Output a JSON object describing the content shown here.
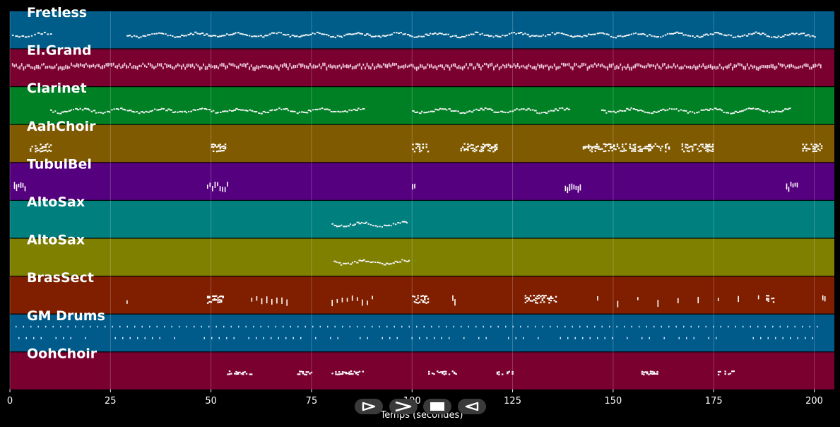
{
  "chart_data": {
    "type": "piano-roll",
    "xlabel": "Temps (secondes)",
    "xlim": [
      0,
      205
    ],
    "xticks": [
      0,
      25,
      50,
      75,
      100,
      125,
      150,
      175,
      200
    ],
    "grid": true,
    "tracks": [
      {
        "name": "Fretless",
        "color": "#005d8a",
        "regions": [
          [
            0.5,
            10.5,
            "scatter"
          ],
          [
            29,
            200,
            "wave"
          ]
        ]
      },
      {
        "name": "El.Grand",
        "color": "#7a0030",
        "regions": [
          [
            0.5,
            201.5,
            "dense"
          ]
        ]
      },
      {
        "name": "Clarinet",
        "color": "#008024",
        "regions": [
          [
            10,
            88,
            "wave"
          ],
          [
            100,
            139,
            "wave"
          ],
          [
            147,
            194,
            "wave"
          ]
        ]
      },
      {
        "name": "AahChoir",
        "color": "#805a00",
        "regions": [
          [
            4.5,
            10,
            "cluster"
          ],
          [
            50,
            53.5,
            "cluster"
          ],
          [
            100,
            104,
            "cluster"
          ],
          [
            112,
            121,
            "clusters"
          ],
          [
            142,
            153,
            "cluster"
          ],
          [
            154,
            164,
            "clusters"
          ],
          [
            167,
            175,
            "clusters"
          ],
          [
            197,
            202,
            "cluster"
          ]
        ]
      },
      {
        "name": "TubulBel",
        "color": "#55007f",
        "regions": [
          [
            1,
            4,
            "sparse"
          ],
          [
            49,
            54,
            "sparse"
          ],
          [
            100,
            101,
            "sparse"
          ],
          [
            138,
            142,
            "sparse"
          ],
          [
            193,
            196,
            "sparse"
          ]
        ]
      },
      {
        "name": "AltoSax",
        "color": "#007f7f",
        "regions": [
          [
            80,
            99,
            "wave"
          ]
        ]
      },
      {
        "name": "AltoSax",
        "color": "#7f7f00",
        "regions": [
          [
            80.5,
            99.5,
            "wave"
          ]
        ]
      },
      {
        "name": "BrasSect",
        "color": "#7f1f00",
        "regions": [
          [
            29,
            29.5,
            "sparse"
          ],
          [
            49,
            53,
            "cluster"
          ],
          [
            60,
            70,
            "sparse"
          ],
          [
            80,
            90,
            "sparse"
          ],
          [
            100,
            104,
            "cluster"
          ],
          [
            110,
            111,
            "sparse"
          ],
          [
            128,
            136,
            "cluster"
          ],
          [
            146,
            186,
            "sparse"
          ],
          [
            188,
            190,
            "cluster"
          ],
          [
            202,
            203,
            "sparse"
          ]
        ]
      },
      {
        "name": "GM Drums",
        "color": "#005a8a",
        "regions": [
          [
            0,
            202,
            "drums"
          ]
        ]
      },
      {
        "name": "OohChoir",
        "color": "#7a0030",
        "regions": [
          [
            54,
            60,
            "block"
          ],
          [
            71,
            75,
            "block"
          ],
          [
            80,
            88,
            "block"
          ],
          [
            104,
            111,
            "block"
          ],
          [
            121,
            125,
            "block"
          ],
          [
            157,
            161,
            "block"
          ],
          [
            176,
            180,
            "block"
          ]
        ]
      }
    ]
  },
  "controls": {
    "play": "play-icon",
    "forward": "fast-forward-icon",
    "stop": "stop-icon",
    "back": "rewind-icon"
  }
}
